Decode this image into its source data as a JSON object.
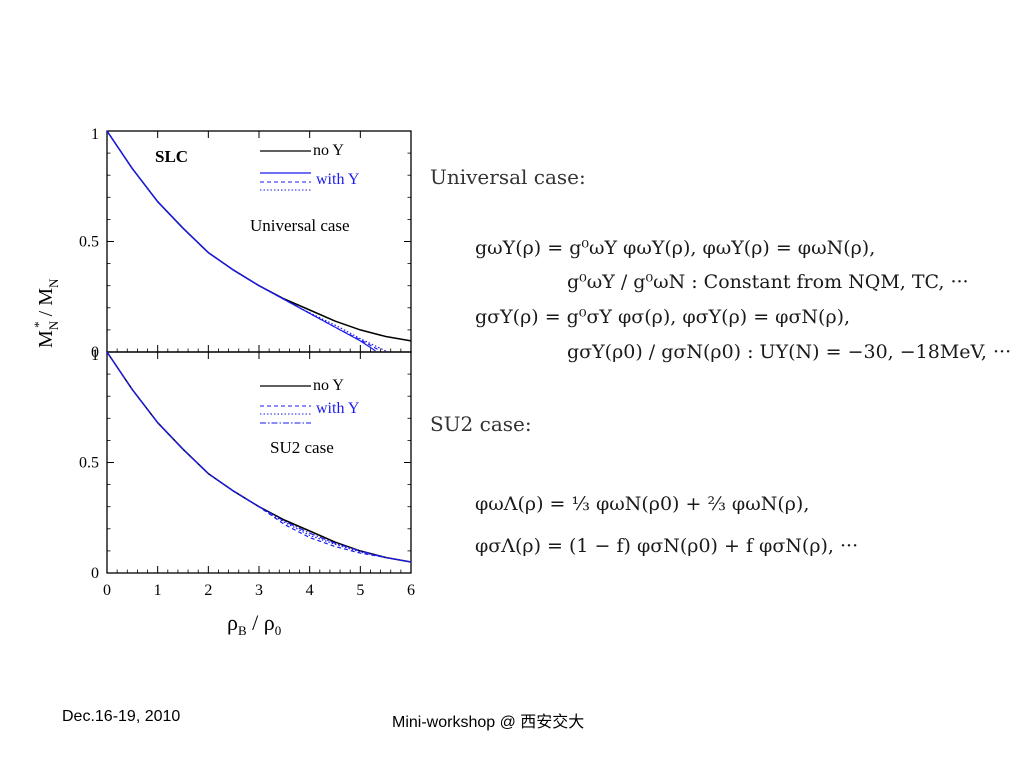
{
  "chart_data": [
    {
      "type": "line",
      "panel_label": "SLC",
      "annotation": "Universal case",
      "xlim": [
        0,
        6
      ],
      "ylim": [
        0,
        1
      ],
      "xticks": [
        "",
        "",
        "",
        "",
        "",
        "",
        ""
      ],
      "yticks": [
        "0",
        "0.5",
        "1"
      ],
      "legend": {
        "placement": "top-right",
        "group1": "no Y",
        "group2": "with Y"
      },
      "series": [
        {
          "style": "solid",
          "color": "#000000",
          "x": [
            0,
            0.5,
            1,
            1.5,
            2,
            2.5,
            3,
            3.5,
            4,
            4.5,
            5,
            5.5,
            6
          ],
          "y": [
            1,
            0.83,
            0.68,
            0.56,
            0.45,
            0.37,
            0.3,
            0.24,
            0.19,
            0.14,
            0.1,
            0.07,
            0.05
          ]
        },
        {
          "style": "solid",
          "color": "#1a1aee",
          "x": [
            0,
            0.5,
            1,
            1.5,
            2,
            2.5,
            3,
            3.4,
            3.8,
            4.2,
            4.6,
            5.0,
            5.3
          ],
          "y": [
            1,
            0.83,
            0.68,
            0.56,
            0.45,
            0.37,
            0.3,
            0.25,
            0.2,
            0.15,
            0.1,
            0.05,
            0.005
          ]
        },
        {
          "style": "dashed",
          "color": "#1a1aee",
          "x": [
            0,
            0.5,
            1,
            1.5,
            2,
            2.5,
            3,
            3.4,
            3.8,
            4.2,
            4.6,
            5.0,
            5.4
          ],
          "y": [
            1,
            0.83,
            0.68,
            0.56,
            0.45,
            0.37,
            0.3,
            0.25,
            0.2,
            0.15,
            0.1,
            0.055,
            0.005
          ]
        },
        {
          "style": "dotted",
          "color": "#1a1aee",
          "x": [
            0,
            0.5,
            1,
            1.5,
            2,
            2.5,
            3,
            3.4,
            3.8,
            4.2,
            4.6,
            5.0,
            5.5
          ],
          "y": [
            1,
            0.83,
            0.68,
            0.56,
            0.45,
            0.37,
            0.3,
            0.25,
            0.2,
            0.155,
            0.11,
            0.06,
            0.005
          ]
        }
      ]
    },
    {
      "type": "line",
      "panel_label": "",
      "annotation": "SU2 case",
      "xlim": [
        0,
        6
      ],
      "ylim": [
        0,
        1
      ],
      "xlabel": "ρB / ρ0",
      "xticks": [
        "0",
        "1",
        "2",
        "3",
        "4",
        "5",
        "6"
      ],
      "yticks": [
        "0",
        "0.5",
        "1"
      ],
      "legend": {
        "placement": "top-right",
        "group1": "no Y",
        "group2": "with Y"
      },
      "series": [
        {
          "style": "solid",
          "color": "#000000",
          "x": [
            0,
            0.5,
            1,
            1.5,
            2,
            2.5,
            3,
            3.5,
            4,
            4.5,
            5,
            5.5,
            6
          ],
          "y": [
            1,
            0.83,
            0.68,
            0.56,
            0.45,
            0.37,
            0.3,
            0.24,
            0.19,
            0.14,
            0.1,
            0.07,
            0.05
          ]
        },
        {
          "style": "dashed",
          "color": "#1a1aee",
          "x": [
            0,
            0.5,
            1,
            1.5,
            2,
            2.5,
            3,
            3.5,
            4,
            4.5,
            5,
            5.5,
            6
          ],
          "y": [
            1,
            0.83,
            0.68,
            0.56,
            0.45,
            0.37,
            0.3,
            0.22,
            0.16,
            0.12,
            0.09,
            0.07,
            0.05
          ]
        },
        {
          "style": "dotted",
          "color": "#1a1aee",
          "x": [
            0,
            0.5,
            1,
            1.5,
            2,
            2.5,
            3,
            3.5,
            4,
            4.5,
            5,
            5.5,
            6
          ],
          "y": [
            1,
            0.83,
            0.68,
            0.56,
            0.45,
            0.37,
            0.3,
            0.23,
            0.17,
            0.13,
            0.095,
            0.07,
            0.05
          ]
        },
        {
          "style": "dashdot",
          "color": "#1a1aee",
          "x": [
            0,
            0.5,
            1,
            1.5,
            2,
            2.5,
            3,
            3.5,
            4,
            4.5,
            5,
            5.5,
            6
          ],
          "y": [
            1,
            0.83,
            0.68,
            0.56,
            0.45,
            0.37,
            0.3,
            0.235,
            0.18,
            0.135,
            0.1,
            0.07,
            0.05
          ]
        }
      ]
    }
  ],
  "ylabel": "MN* / MN",
  "notes": {
    "universal_heading": "Universal case:",
    "universal_eqs": [
      "gωY(ρ) = g⁰ωY φωY(ρ),   φωY(ρ) = φωN(ρ),",
      "g⁰ωY / g⁰ωN : Constant from NQM, TC, ···",
      "gσY(ρ) = g⁰σY φσ(ρ),   φσY(ρ) = φσN(ρ),",
      "gσY(ρ0) / gσN(ρ0) : UY(N) = −30, −18MeV, ···"
    ],
    "su2_heading": "SU2 case:",
    "su2_eqs": [
      "φωΛ(ρ) = ⅓ φωN(ρ0) + ⅔ φωN(ρ),",
      "φσΛ(ρ) = (1 − f) φσN(ρ0) + f φσN(ρ), ···"
    ]
  },
  "footer": {
    "date": "Dec.16-19, 2010",
    "event": "Mini-workshop @ 西安交大"
  }
}
